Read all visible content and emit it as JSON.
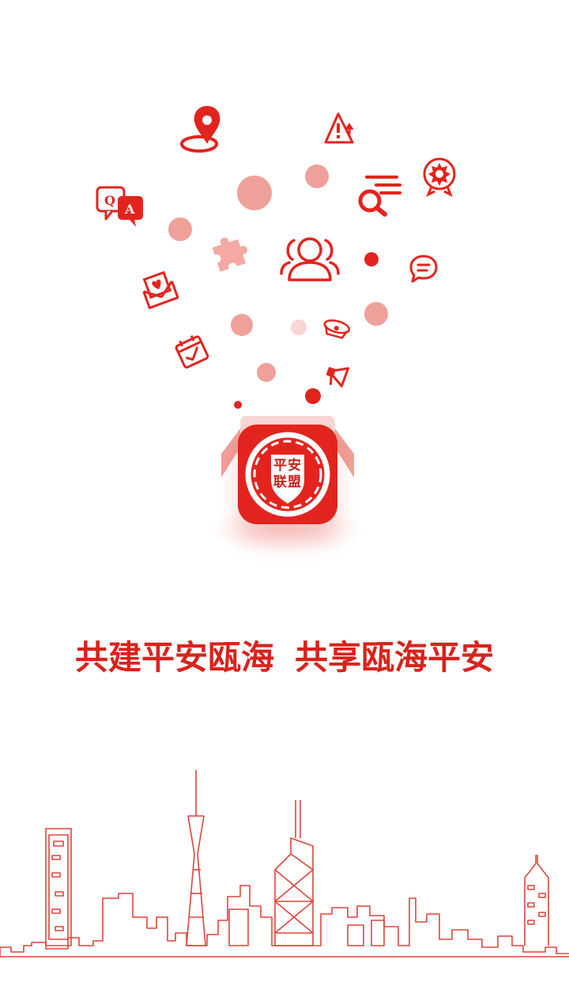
{
  "splash": {
    "logo": {
      "line1": "平安",
      "line2": "联盟"
    },
    "slogan": {
      "part1": "共建平安瓯海",
      "part2": "共享瓯海平安"
    }
  },
  "colors": {
    "brand_red": "#e3241e",
    "soft_red": "#f0a09a",
    "pale_red": "#f8d6d3",
    "line_red": "#e0443c"
  },
  "icons": [
    "location-pin-icon",
    "warning-triangle-icon",
    "qa-bubble-icon",
    "search-list-icon",
    "badge-check-icon",
    "puzzle-icon",
    "users-group-icon",
    "chat-bubble-icon",
    "heart-mail-icon",
    "calendar-check-icon",
    "police-cap-icon",
    "megaphone-icon"
  ]
}
